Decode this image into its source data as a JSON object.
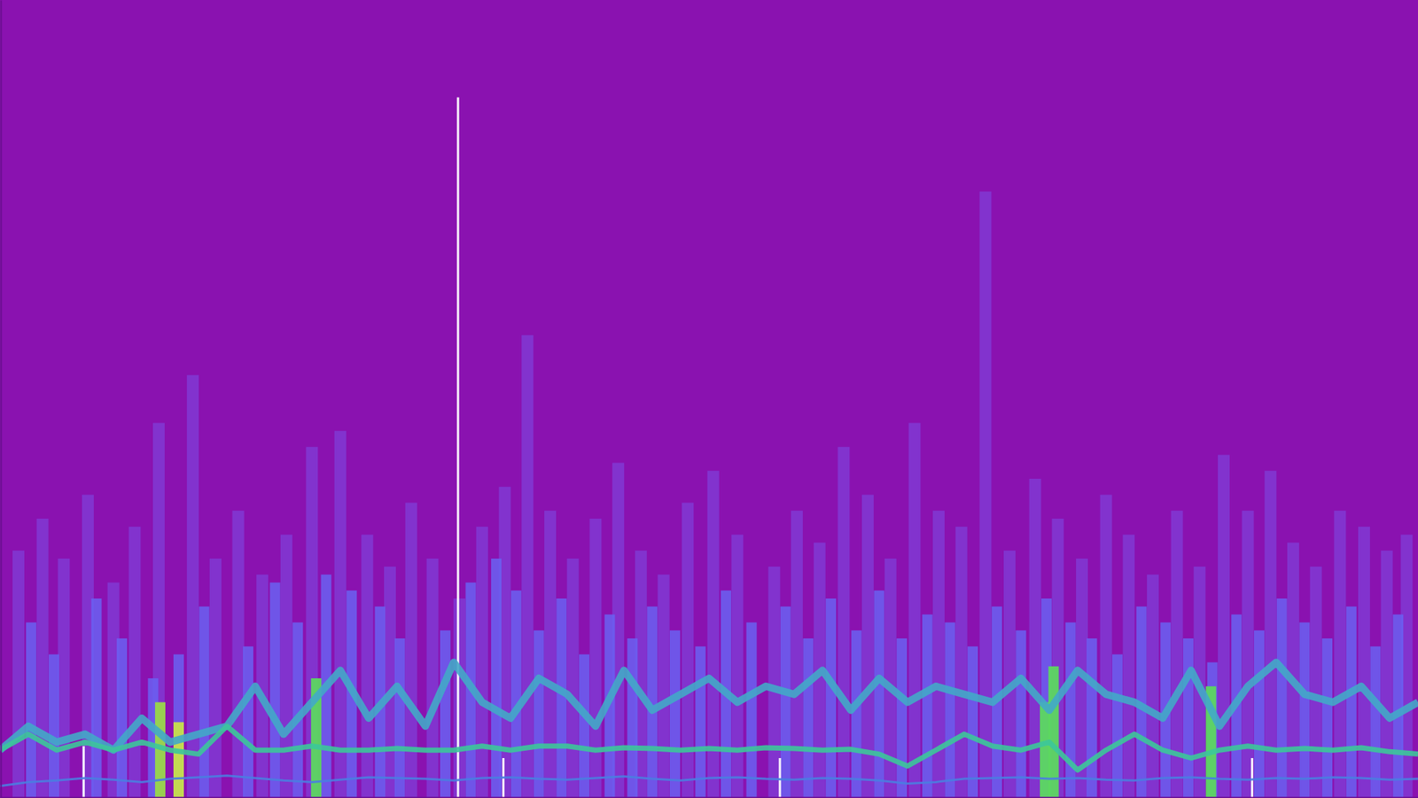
{
  "chart_data": {
    "type": "bar",
    "xlim": [
      0,
      100
    ],
    "ylim": [
      0,
      100
    ],
    "tick_labels": false,
    "series": [
      {
        "type": "bar",
        "color": "#7f3fd8",
        "x": [
          1.3,
          3,
          4.5,
          6.2,
          8,
          9.5,
          11.2,
          13.6,
          15.2,
          16.8,
          18.5,
          20.2,
          22,
          24,
          25.9,
          27.5,
          29,
          30.5,
          32.4,
          34,
          35.6,
          37.2,
          38.8,
          40.4,
          42,
          43.6,
          45.2,
          46.8,
          48.5,
          50.3,
          52,
          54.6,
          56.2,
          57.8,
          59.5,
          61.2,
          62.8,
          64.5,
          66.2,
          67.8,
          69.5,
          71.2,
          73,
          74.6,
          76.3,
          78,
          79.6,
          81.3,
          83,
          84.6,
          86.3,
          88,
          89.6,
          91.2,
          92.8,
          94.5,
          96.2,
          97.8,
          99.2
        ],
        "values": [
          31,
          35,
          30,
          38,
          27,
          34,
          47,
          53,
          30,
          36,
          28,
          33,
          44,
          46,
          33,
          29,
          37,
          30,
          25,
          34,
          39,
          58,
          36,
          30,
          35,
          42,
          31,
          28,
          37,
          41,
          33,
          29,
          36,
          32,
          44,
          38,
          30,
          47,
          36,
          34,
          76,
          31,
          40,
          35,
          30,
          38,
          33,
          28,
          36,
          29,
          43,
          36,
          41,
          32,
          29,
          36,
          34,
          31,
          33
        ]
      },
      {
        "type": "bar",
        "color": "#6a62f2",
        "x": [
          2.2,
          3.8,
          6.8,
          8.6,
          10.8,
          12.6,
          14.4,
          17.5,
          19.4,
          21,
          23,
          24.8,
          26.8,
          28.2,
          31.4,
          33.2,
          35,
          36.4,
          38,
          39.6,
          41.2,
          43,
          44.6,
          46,
          47.6,
          49.4,
          51.2,
          53,
          55.4,
          57,
          58.6,
          60.4,
          62,
          63.6,
          65.4,
          67,
          68.6,
          70.3,
          72,
          73.8,
          75.5,
          77,
          78.8,
          80.5,
          82.2,
          83.8,
          85.5,
          87.2,
          88.8,
          90.4,
          92,
          93.6,
          95.3,
          97,
          98.6
        ],
        "values": [
          22,
          18,
          25,
          20,
          15,
          18,
          24,
          19,
          27,
          22,
          28,
          26,
          24,
          20,
          21,
          27,
          30,
          26,
          21,
          25,
          18,
          23,
          20,
          24,
          21,
          19,
          26,
          22,
          24,
          20,
          25,
          21,
          26,
          20,
          23,
          22,
          19,
          24,
          21,
          25,
          22,
          20,
          18,
          24,
          22,
          20,
          17,
          23,
          21,
          25,
          22,
          20,
          24,
          19,
          23
        ]
      },
      {
        "type": "bar",
        "colors": [
          "#9ad84a",
          "#c8e04a",
          "#5cd860",
          "#5cd860",
          "#5cd860",
          "#5cd860"
        ],
        "x": [
          11.3,
          12.6,
          22.3,
          73.7,
          74.3,
          85.4
        ],
        "values": [
          12,
          9.5,
          15,
          12,
          16.5,
          14
        ]
      },
      {
        "type": "bar",
        "color": "#ffffff",
        "x": [
          5.9,
          32.3,
          35.5,
          55,
          88.3
        ],
        "values": [
          6.5,
          87.8,
          5,
          5,
          5
        ]
      },
      {
        "type": "line",
        "color": "#42a8c8",
        "x": [
          0,
          2,
          4,
          6,
          8,
          10,
          12,
          14,
          16,
          18,
          20,
          22,
          24,
          26,
          28,
          30,
          32,
          34,
          36,
          38,
          40,
          42,
          44,
          46,
          48,
          50,
          52,
          54,
          56,
          58,
          60,
          62,
          64,
          66,
          68,
          70,
          72,
          74,
          76,
          78,
          80,
          82,
          84,
          86,
          88,
          90,
          92,
          94,
          96,
          98,
          100
        ],
        "values": [
          6,
          9,
          7,
          8,
          6,
          10,
          7,
          8,
          9,
          14,
          8,
          12,
          16,
          10,
          14,
          9,
          17,
          12,
          10,
          15,
          13,
          9,
          16,
          11,
          13,
          15,
          12,
          14,
          13,
          16,
          11,
          15,
          12,
          14,
          13,
          12,
          15,
          11,
          16,
          13,
          12,
          10,
          16,
          9,
          14,
          17,
          13,
          12,
          14,
          10,
          12
        ]
      },
      {
        "type": "line",
        "color": "#3cc79a",
        "x": [
          0,
          2,
          4,
          6,
          8,
          10,
          12,
          14,
          16,
          18,
          20,
          22,
          24,
          26,
          28,
          30,
          32,
          34,
          36,
          38,
          40,
          42,
          44,
          46,
          48,
          50,
          52,
          54,
          56,
          58,
          60,
          62,
          64,
          66,
          68,
          70,
          72,
          74,
          76,
          78,
          80,
          82,
          84,
          86,
          88,
          90,
          92,
          94,
          96,
          98,
          100
        ],
        "values": [
          6,
          8,
          6,
          7,
          6,
          7,
          6,
          5.5,
          9,
          6,
          6,
          6.5,
          6,
          6,
          6.2,
          6,
          6,
          6.5,
          6,
          6.5,
          6.5,
          6,
          6.3,
          6.2,
          6,
          6.2,
          6,
          6.3,
          6.2,
          6,
          6.1,
          5.5,
          4,
          6,
          8,
          6.5,
          6,
          7,
          3.5,
          6,
          8,
          6,
          5,
          6,
          6.5,
          6,
          6.2,
          6,
          6.3,
          5.8,
          5.5
        ]
      },
      {
        "type": "line",
        "color": "#4a7de0",
        "x": [
          0,
          2,
          4,
          6,
          8,
          10,
          12,
          14,
          16,
          18,
          20,
          22,
          24,
          26,
          28,
          30,
          32,
          34,
          36,
          38,
          40,
          42,
          44,
          46,
          48,
          50,
          52,
          54,
          56,
          58,
          60,
          62,
          64,
          66,
          68,
          70,
          72,
          74,
          76,
          78,
          80,
          82,
          84,
          86,
          88,
          90,
          92,
          94,
          96,
          98,
          100
        ],
        "values": [
          1.5,
          2,
          2.2,
          2.5,
          2.3,
          2,
          2.4,
          2.6,
          2.8,
          2.5,
          2.2,
          2,
          2.3,
          2.6,
          2.5,
          2.4,
          2.2,
          2.5,
          2.6,
          2.4,
          2.3,
          2.5,
          2.7,
          2.4,
          2.2,
          2.5,
          2.6,
          2.4,
          2.3,
          2.5,
          2.4,
          2.2,
          1.8,
          2,
          2.4,
          2.5,
          2.6,
          2.4,
          2.5,
          2.3,
          2.2,
          2.5,
          2.6,
          2.4,
          2.3,
          2.5,
          2.4,
          2.6,
          2.5,
          2.3,
          2.4
        ]
      }
    ]
  }
}
